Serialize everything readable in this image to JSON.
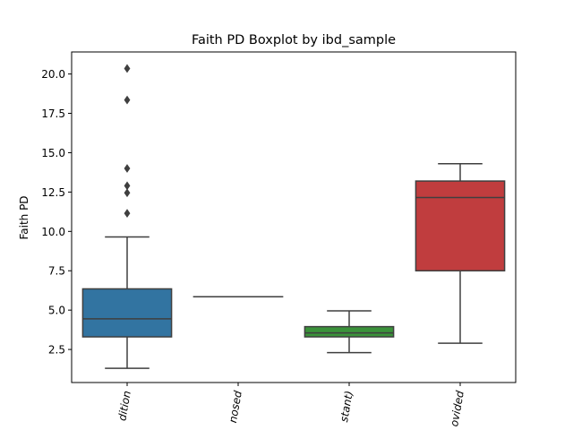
{
  "chart_data": {
    "type": "boxplot",
    "title": "Faith PD Boxplot by ibd_sample",
    "xlabel": "",
    "ylabel": "Faith PD",
    "ylim": [
      0.4,
      21.4
    ],
    "yticks": [
      2.5,
      5.0,
      7.5,
      10.0,
      12.5,
      15.0,
      17.5,
      20.0
    ],
    "ytick_labels": [
      "2.5",
      "5.0",
      "7.5",
      "10.0",
      "12.5",
      "15.0",
      "17.5",
      "20.0"
    ],
    "categories": [
      "dition",
      "nosed",
      "stant)",
      "ovided"
    ],
    "grid": false,
    "boxes": [
      {
        "category": "dition",
        "color": "#3274a1",
        "whisker_low": 1.3,
        "q1": 3.3,
        "median": 4.45,
        "q3": 6.35,
        "whisker_high": 9.65,
        "outliers": [
          11.15,
          12.45,
          12.9,
          14.0,
          18.35,
          20.35
        ]
      },
      {
        "category": "nosed",
        "color": "#e1812c",
        "whisker_low": 5.85,
        "q1": 5.85,
        "median": 5.85,
        "q3": 5.85,
        "whisker_high": 5.85,
        "outliers": []
      },
      {
        "category": "stant)",
        "color": "#3a923a",
        "whisker_low": 2.3,
        "q1": 3.3,
        "median": 3.55,
        "q3": 3.95,
        "whisker_high": 4.95,
        "outliers": []
      },
      {
        "category": "ovided",
        "color": "#c03d3e",
        "whisker_low": 2.9,
        "q1": 7.5,
        "median": 12.15,
        "q3": 13.2,
        "whisker_high": 14.3,
        "outliers": []
      }
    ]
  }
}
